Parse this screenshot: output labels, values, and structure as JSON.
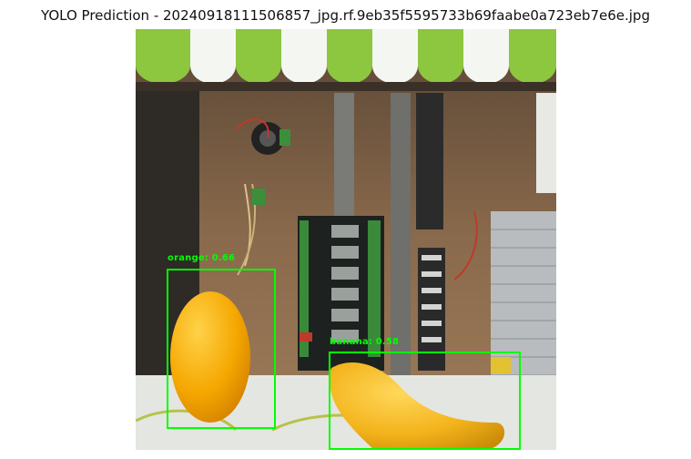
{
  "figure": {
    "title": "YOLO Prediction - 20240918111506857_jpg.rf.9eb35f5595733b69faabe0a723eb7e6e.jpg"
  },
  "detections": [
    {
      "label": "orange: 0.66",
      "box_color": "#00ff00"
    },
    {
      "label": "banana: 0.58",
      "box_color": "#00ff00"
    }
  ]
}
